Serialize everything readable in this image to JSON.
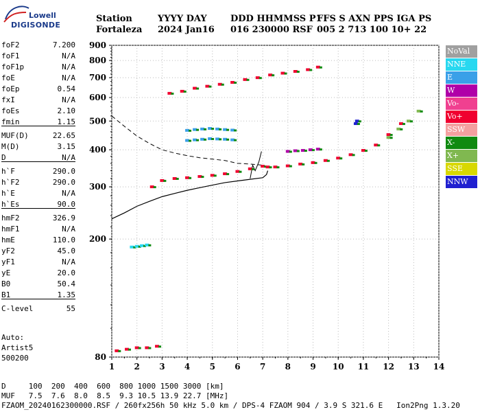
{
  "logo": {
    "line1": "Lowell",
    "line2": "DIGISONDE"
  },
  "header": {
    "labels": [
      "Station",
      "YYYY DAY",
      "DDD HHMMSS P1",
      "FFS S AXN PPS IGA PS"
    ],
    "values": [
      "Fortaleza",
      "2024 Jan16",
      "016 230000 RSF",
      "005 2 713 100 10+ 22"
    ]
  },
  "params": [
    {
      "name": "foF2",
      "value": "7.200"
    },
    {
      "name": "foF1",
      "value": "N/A"
    },
    {
      "name": "foF1p",
      "value": "N/A"
    },
    {
      "name": "foE",
      "value": "N/A"
    },
    {
      "name": "foEp",
      "value": "0.54"
    },
    {
      "name": "fxI",
      "value": "N/A"
    },
    {
      "name": "foEs",
      "value": "2.10"
    },
    {
      "name": "fmin",
      "value": "1.15"
    },
    {
      "sep": true
    },
    {
      "name": "MUF(D)",
      "value": "22.65"
    },
    {
      "name": "M(D)",
      "value": "3.15"
    },
    {
      "name": "D",
      "value": "N/A"
    },
    {
      "sep": true
    },
    {
      "name": "h`F",
      "value": "290.0"
    },
    {
      "name": "h`F2",
      "value": "290.0"
    },
    {
      "name": "h`E",
      "value": "N/A"
    },
    {
      "name": "h`Es",
      "value": "90.0"
    },
    {
      "sep": true
    },
    {
      "name": "hmF2",
      "value": "326.9"
    },
    {
      "name": "hmF1",
      "value": "N/A"
    },
    {
      "name": "hmE",
      "value": "110.0"
    },
    {
      "name": "yF2",
      "value": "45.0"
    },
    {
      "name": "yF1",
      "value": "N/A"
    },
    {
      "name": "yE",
      "value": "20.0"
    },
    {
      "name": "B0",
      "value": "50.4"
    },
    {
      "name": "B1",
      "value": "1.35"
    },
    {
      "sep": true
    },
    {
      "name": "C-level",
      "value": "55"
    }
  ],
  "auto": {
    "line1": "Auto:",
    "line2": "Artist5",
    "line3": "500200"
  },
  "footer": {
    "d_row": "D     100  200  400  600  800 1000 1500 3000 [km]",
    "muf_row": "MUF   7.5  7.6  8.0  8.5  9.3 10.5 13.9 22.7 [MHz]",
    "file_row": "FZAOM_20240162300000.RSF / 260fx256h 50 kHz 5.0 km / DPS-4 FZAOM 904 / 3.9 S 321.6 E   Ion2Png 1.3.20"
  },
  "legend": [
    {
      "label": "NoVal",
      "color": "#a0a0a0"
    },
    {
      "label": "NNE",
      "color": "#28d8f0"
    },
    {
      "label": "E",
      "color": "#3aa0e8"
    },
    {
      "label": "W",
      "color": "#b000a8"
    },
    {
      "label": "Vo-",
      "color": "#f04090"
    },
    {
      "label": "Vo+",
      "color": "#f00030"
    },
    {
      "label": "SSW",
      "color": "#f4a0a0"
    },
    {
      "label": "X-",
      "color": "#108a10"
    },
    {
      "label": "X+",
      "color": "#80b850"
    },
    {
      "label": "SSE",
      "color": "#d8d800"
    },
    {
      "label": "NNW",
      "color": "#2020d0"
    }
  ],
  "chart_data": {
    "type": "scatter",
    "xlabel": "",
    "ylabel": "",
    "xlim": [
      1,
      14
    ],
    "ylim": [
      80,
      900
    ],
    "x_ticks": [
      "1",
      "2",
      "3",
      "4",
      "5",
      "6",
      "7",
      "8",
      "9",
      "10",
      "11",
      "12",
      "13",
      "14"
    ],
    "y_ticks": [
      "80",
      "200",
      "300",
      "400",
      "500",
      "600",
      "700",
      "800",
      "900"
    ],
    "y_scale": "log",
    "grid": "dotted",
    "series": [
      {
        "color_ref": "Vo+",
        "x": [
          2.6,
          3.0,
          3.5,
          4.0,
          4.5,
          5.0,
          5.5,
          6.0,
          6.5,
          7.0,
          7.2,
          7.5,
          8.0,
          8.5,
          9.0,
          9.5,
          10.0,
          10.5,
          11.0,
          11.5,
          12.0,
          12.5
        ],
        "y": [
          300,
          315,
          320,
          322,
          325,
          328,
          332,
          338,
          345,
          352,
          350,
          350,
          353,
          358,
          362,
          368,
          375,
          385,
          398,
          415,
          450,
          490
        ]
      },
      {
        "color_ref": "W",
        "x": [
          8.0,
          8.3,
          8.6,
          8.9,
          9.2
        ],
        "y": [
          395,
          397,
          398,
          400,
          402
        ]
      },
      {
        "color_ref": "E",
        "x": [
          4.0,
          4.3,
          4.6,
          4.9,
          5.2,
          5.5,
          5.8
        ],
        "y": [
          465,
          468,
          470,
          472,
          470,
          468,
          466
        ]
      },
      {
        "color_ref": "E",
        "x": [
          4.0,
          4.3,
          4.6,
          4.9,
          5.2,
          5.5,
          5.8
        ],
        "y": [
          430,
          432,
          434,
          436,
          435,
          434,
          432
        ]
      },
      {
        "color_ref": "Vo+",
        "x": [
          3.3,
          3.8,
          4.3,
          4.8,
          5.3,
          5.8,
          6.3,
          6.8,
          7.3,
          7.8,
          8.3,
          8.8,
          9.2
        ],
        "y": [
          620,
          630,
          645,
          655,
          665,
          675,
          690,
          700,
          715,
          725,
          735,
          745,
          760
        ]
      },
      {
        "color_ref": "Vo+",
        "x": [
          1.2,
          1.6,
          2.0,
          2.4,
          2.8
        ],
        "y": [
          84,
          85,
          86,
          86,
          87
        ]
      },
      {
        "color_ref": "NNE",
        "x": [
          1.8,
          2.0,
          2.2,
          2.4
        ],
        "y": [
          188,
          189,
          190,
          191
        ]
      },
      {
        "color_ref": "X+",
        "x": [
          12.0,
          12.4,
          12.8,
          13.2
        ],
        "y": [
          440,
          470,
          500,
          540
        ]
      },
      {
        "color_ref": "NNW",
        "x": [
          10.7,
          10.75
        ],
        "y": [
          490,
          500
        ]
      }
    ],
    "profile_curve": {
      "x": [
        1.0,
        1.5,
        2.0,
        2.5,
        3.0,
        3.5,
        4.0,
        4.5,
        5.0,
        5.5,
        6.0,
        6.5,
        7.0,
        7.15,
        7.2
      ],
      "y": [
        234,
        245,
        258,
        268,
        278,
        285,
        292,
        298,
        304,
        310,
        314,
        318,
        322,
        330,
        340
      ]
    },
    "dashed_curve": {
      "x": [
        1.0,
        1.5,
        2.0,
        2.5,
        3.0,
        3.5,
        4.0,
        4.5,
        5.0,
        5.5,
        6.0,
        6.5,
        7.0
      ],
      "y": [
        520,
        480,
        445,
        420,
        400,
        390,
        382,
        376,
        372,
        368,
        360,
        358,
        355
      ]
    }
  }
}
